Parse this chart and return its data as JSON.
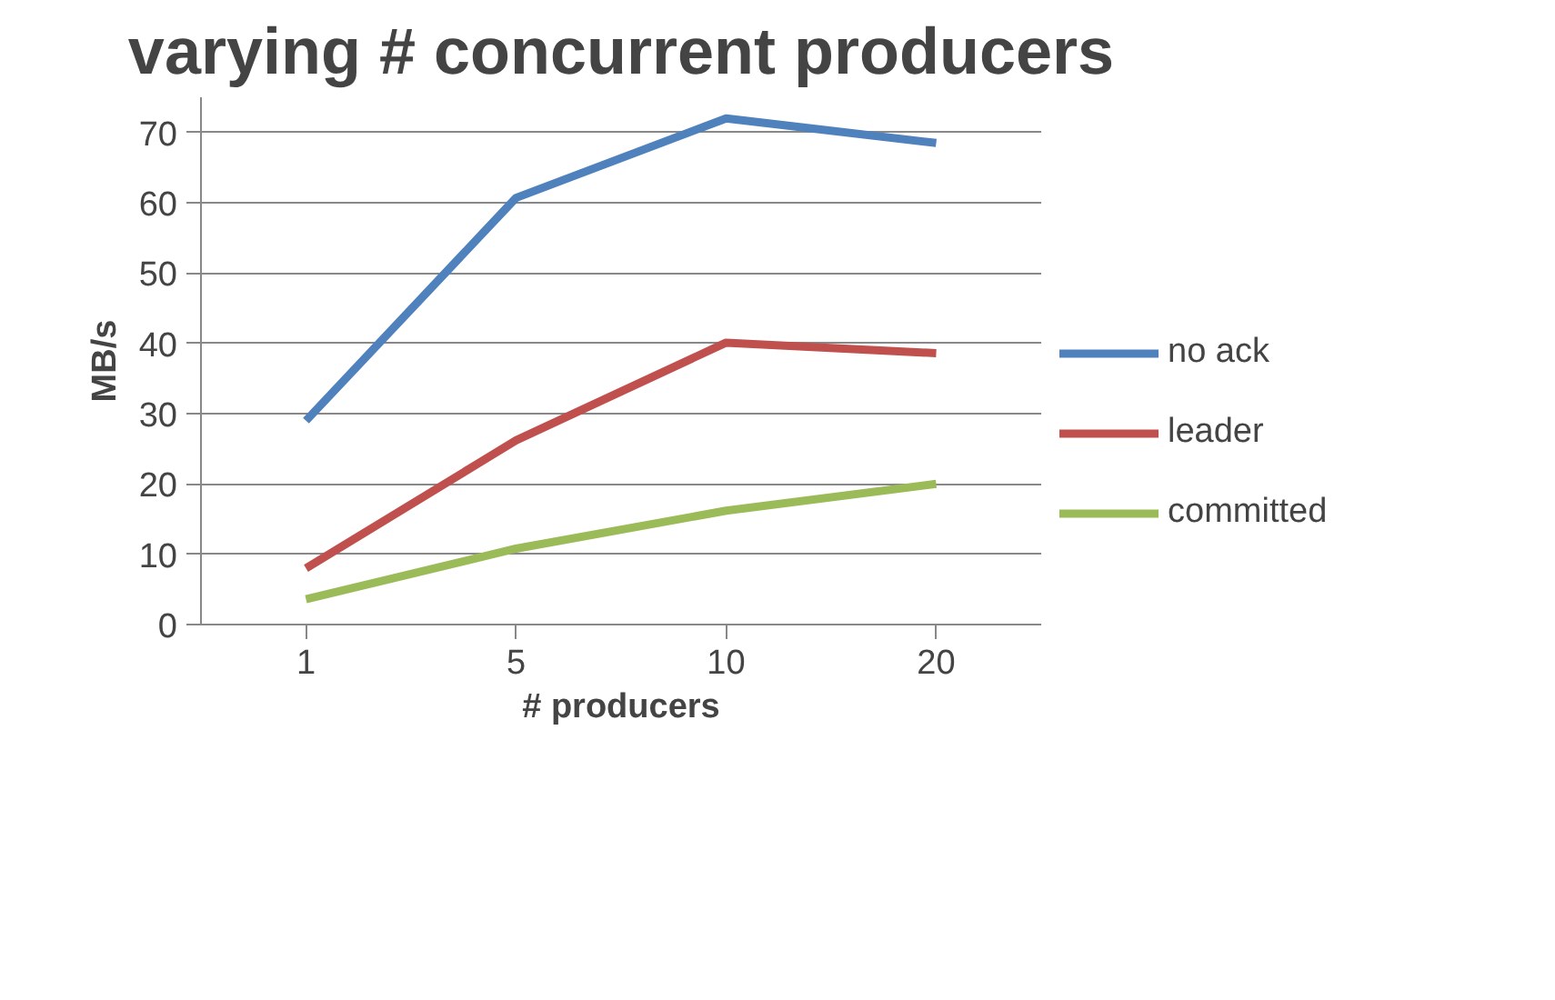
{
  "chart_data": {
    "type": "line",
    "title": "varying # concurrent producers",
    "xlabel": "# producers",
    "ylabel": "MB/s",
    "categories": [
      "1",
      "5",
      "10",
      "20"
    ],
    "series": [
      {
        "name": "no ack",
        "color": "#4f81bd",
        "values": [
          29,
          60.7,
          72,
          68.5
        ]
      },
      {
        "name": "leader",
        "color": "#c0504d",
        "values": [
          8,
          26.2,
          40.1,
          38.6
        ]
      },
      {
        "name": "committed",
        "color": "#9bbb59",
        "values": [
          3.6,
          10.8,
          16.2,
          20
        ]
      }
    ],
    "ylim": [
      0,
      75
    ],
    "yticks": [
      0,
      10,
      20,
      30,
      40,
      50,
      60,
      70
    ],
    "grid": "y",
    "legend": "right",
    "marker": "none",
    "line_style": "solid"
  }
}
